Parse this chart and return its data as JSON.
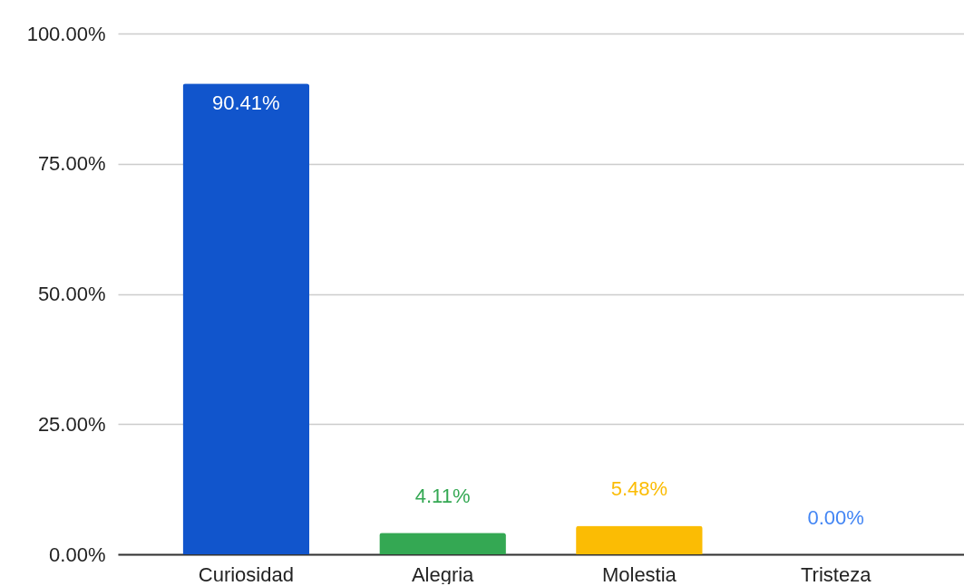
{
  "chart_data": {
    "type": "bar",
    "categories": [
      "Curiosidad",
      "Alegria",
      "Molestia",
      "Tristeza"
    ],
    "values": [
      90.41,
      4.11,
      5.48,
      0.0
    ],
    "colors": [
      "#1155cc",
      "#34a853",
      "#fbbc04",
      "#4285f4"
    ],
    "value_labels": [
      "90.41%",
      "4.11%",
      "5.48%",
      "0.00%"
    ],
    "ylim": [
      0,
      100
    ],
    "yticks": [
      {
        "value": 0,
        "label": "0.00%"
      },
      {
        "value": 25,
        "label": "25.00%"
      },
      {
        "value": 50,
        "label": "50.00%"
      },
      {
        "value": 75,
        "label": "75.00%"
      },
      {
        "value": 100,
        "label": "100.00%"
      }
    ],
    "grid": "y"
  }
}
